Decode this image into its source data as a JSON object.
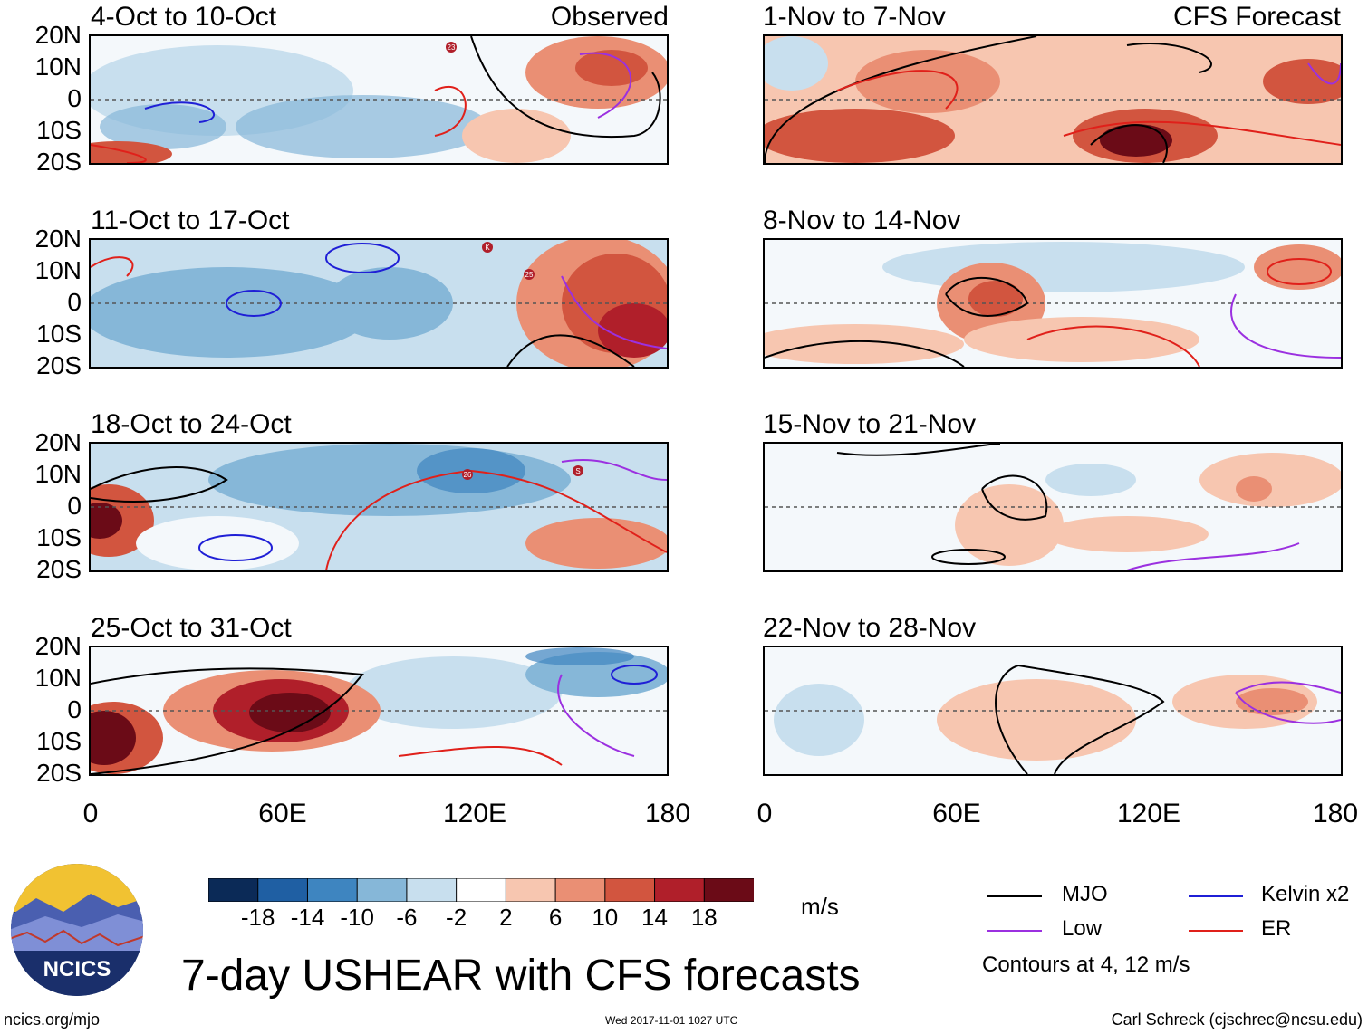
{
  "panels": [
    {
      "id": "obs1",
      "title": "4-Oct to 10-Oct",
      "tag": "Observed",
      "cyclones": [
        "23"
      ]
    },
    {
      "id": "obs2",
      "title": "11-Oct to 17-Oct",
      "tag": "",
      "cyclones": [
        "K",
        "25"
      ]
    },
    {
      "id": "obs3",
      "title": "18-Oct to 24-Oct",
      "tag": "",
      "cyclones": [
        "26",
        "S"
      ]
    },
    {
      "id": "obs4",
      "title": "25-Oct to 31-Oct",
      "tag": "",
      "cyclones": []
    },
    {
      "id": "fc1",
      "title": "1-Nov to 7-Nov",
      "tag": "CFS Forecast",
      "cyclones": []
    },
    {
      "id": "fc2",
      "title": "8-Nov to 14-Nov",
      "tag": "",
      "cyclones": []
    },
    {
      "id": "fc3",
      "title": "15-Nov to 21-Nov",
      "tag": "",
      "cyclones": []
    },
    {
      "id": "fc4",
      "title": "22-Nov to 28-Nov",
      "tag": "",
      "cyclones": []
    }
  ],
  "lat_labels": [
    "20N",
    "10N",
    "0",
    "10S",
    "20S"
  ],
  "lon_labels": [
    "0",
    "60E",
    "120E",
    "180"
  ],
  "colorbar": {
    "labels": [
      "-18",
      "-14",
      "-10",
      "-6",
      "-2",
      "2",
      "6",
      "10",
      "14",
      "18"
    ],
    "colors": [
      "#0b2a57",
      "#1f5fa3",
      "#3e85c0",
      "#86b7d8",
      "#c8dfee",
      "#ffffff",
      "#f7c6b0",
      "#ea8f74",
      "#d2553f",
      "#b01f2a",
      "#6b0b17"
    ],
    "units": "m/s"
  },
  "legend": {
    "items": [
      {
        "label": "MJO",
        "color": "#000000"
      },
      {
        "label": "Kelvin x2",
        "color": "#1f1fd6"
      },
      {
        "label": "Low",
        "color": "#9b30e0"
      },
      {
        "label": "ER",
        "color": "#e0201a"
      }
    ],
    "note": "Contours at 4, 12 m/s"
  },
  "logo_text": "NCICS",
  "main_title": "7-day USHEAR with CFS forecasts",
  "footer": {
    "left": "ncics.org/mjo",
    "center": "Wed 2017-11-01 1027 UTC",
    "right": "Carl Schreck (cjschrec@ncsu.edu)"
  }
}
